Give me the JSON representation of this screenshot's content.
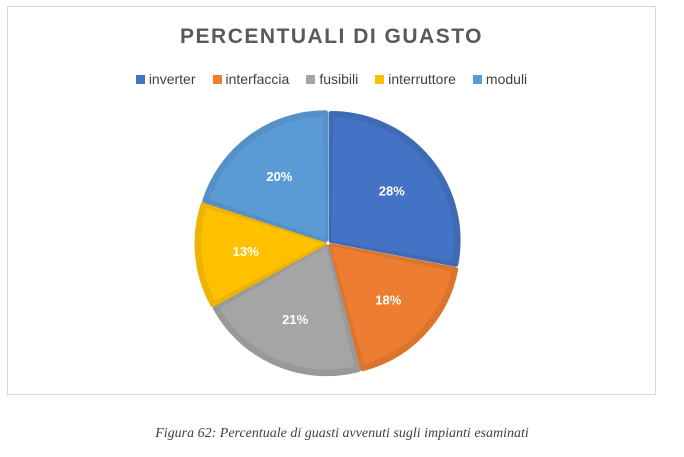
{
  "chart_data": {
    "type": "pie",
    "title": "PERCENTUALI DI GUASTO",
    "legend_position": "top",
    "categories": [
      "inverter",
      "interfaccia",
      "fusibili",
      "interruttore",
      "moduli"
    ],
    "values": [
      28,
      18,
      21,
      13,
      20
    ],
    "labels": [
      "28%",
      "18%",
      "21%",
      "13%",
      "20%"
    ],
    "colors": [
      "#4472c4",
      "#ed7d31",
      "#a5a5a5",
      "#ffc000",
      "#5b9bd5"
    ]
  },
  "caption": "Figura 62: Percentuale di guasti avvenuti sugli impianti esaminati"
}
